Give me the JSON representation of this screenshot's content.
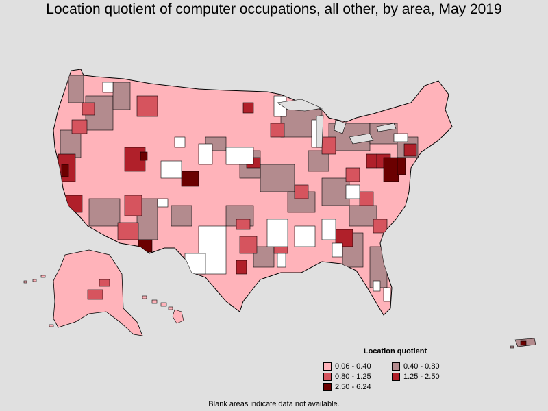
{
  "title": "Location quotient of computer occupations, all other, by area, May 2019",
  "legend": {
    "title": "Location quotient",
    "items": [
      {
        "label": "0.06 - 0.40",
        "color": "#ffb3ba"
      },
      {
        "label": "0.40 - 0.80",
        "color": "#b38b8e"
      },
      {
        "label": "0.80 - 1.25",
        "color": "#d6545e"
      },
      {
        "label": "1.25 - 2.50",
        "color": "#b0202a"
      },
      {
        "label": "2.50 - 6.24",
        "color": "#6b0000"
      }
    ]
  },
  "footnote": "Blank areas indicate data not available.",
  "colors": {
    "background": "#e0e0e0",
    "no_data": "#ffffff",
    "border": "#000000"
  }
}
